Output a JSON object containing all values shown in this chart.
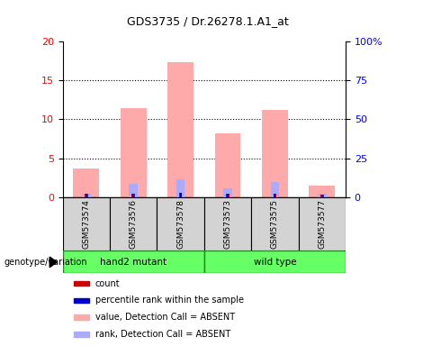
{
  "title": "GDS3735 / Dr.26278.1.A1_at",
  "samples": [
    "GSM573574",
    "GSM573576",
    "GSM573578",
    "GSM573573",
    "GSM573575",
    "GSM573577"
  ],
  "pink_bars": [
    3.7,
    11.5,
    17.3,
    8.2,
    11.2,
    1.5
  ],
  "red_bars": [
    0.4,
    0.5,
    0.6,
    0.4,
    0.5,
    0.3
  ],
  "blue_bars": [
    0.4,
    0.5,
    0.6,
    0.4,
    0.5,
    0.3
  ],
  "lavender_bars": [
    0.5,
    1.7,
    2.3,
    1.1,
    1.9,
    0.4
  ],
  "ylim_left": [
    0,
    20
  ],
  "ylim_right": [
    0,
    100
  ],
  "yticks_left": [
    0,
    5,
    10,
    15,
    20
  ],
  "yticks_right": [
    0,
    25,
    50,
    75,
    100
  ],
  "ytick_labels_right": [
    "0",
    "25",
    "50",
    "75",
    "100%"
  ],
  "grid_dotted_at": [
    5,
    10,
    15
  ],
  "group_color": "#66ff66",
  "legend_items": [
    "count",
    "percentile rank within the sample",
    "value, Detection Call = ABSENT",
    "rank, Detection Call = ABSENT"
  ],
  "legend_colors": [
    "#cc0000",
    "#0000cc",
    "#ffaaaa",
    "#aaaaff"
  ]
}
